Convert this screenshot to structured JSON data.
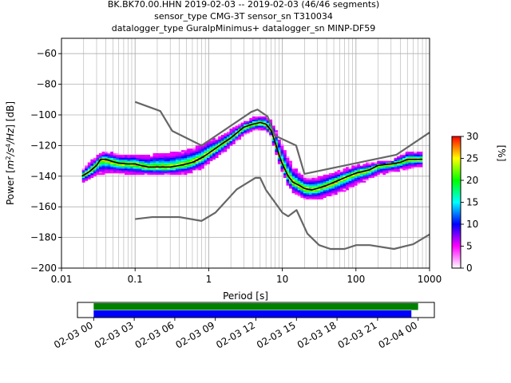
{
  "title_lines": [
    "BK.BK70.00.HHN   2019-02-03 -- 2019-02-03  (46/46 segments)",
    "sensor_type CMG-3T sensor_sn T310034",
    "datalogger_type GuralpMinimus+ datalogger_sn MINP-DF59"
  ],
  "chart_data": [
    {
      "type": "heatmap",
      "xlabel": "Period [s]",
      "ylabel_parts": [
        "Power [",
        "m",
        "2",
        "/s",
        "4",
        "/Hz",
        "] [dB]"
      ],
      "x_scale": "log",
      "xlim": [
        0.01,
        1000
      ],
      "ylim": [
        -200,
        -50
      ],
      "x_ticks": [
        {
          "value": 0.01,
          "label": "0.01"
        },
        {
          "value": 0.1,
          "label": "0.1"
        },
        {
          "value": 1,
          "label": "1"
        },
        {
          "value": 10,
          "label": "10"
        },
        {
          "value": 100,
          "label": "100"
        },
        {
          "value": 1000,
          "label": "1000"
        }
      ],
      "y_ticks": [
        -60,
        -80,
        -100,
        -120,
        -140,
        -160,
        -180,
        -200
      ],
      "grid": true,
      "colormap": [
        "#ffffff",
        "#ff00ff",
        "#0000ff",
        "#00ffff",
        "#00ff00",
        "#ffff00",
        "#ff0000"
      ],
      "colorbar": {
        "label": "[%]",
        "ticks": [
          0,
          5,
          10,
          15,
          20,
          25,
          30
        ],
        "range": [
          0,
          30
        ]
      },
      "noise_models": [
        {
          "name": "NHNM",
          "color": "#666666",
          "points": [
            [
              0.1,
              -91.5
            ],
            [
              0.22,
              -97.5
            ],
            [
              0.32,
              -110.5
            ],
            [
              0.8,
              -120
            ],
            [
              3.8,
              -98
            ],
            [
              4.6,
              -96.5
            ],
            [
              6.3,
              -101
            ],
            [
              7.9,
              -113.5
            ],
            [
              15.4,
              -120
            ],
            [
              20,
              -138.5
            ],
            [
              354.8,
              -126
            ],
            [
              1000,
              -111.5
            ]
          ]
        },
        {
          "name": "NLNM",
          "color": "#666666",
          "points": [
            [
              0.1,
              -168
            ],
            [
              0.17,
              -166.7
            ],
            [
              0.4,
              -166.7
            ],
            [
              0.8,
              -169.2
            ],
            [
              1.24,
              -163.7
            ],
            [
              2.4,
              -148.6
            ],
            [
              4.3,
              -141.1
            ],
            [
              5,
              -141.1
            ],
            [
              6,
              -149
            ],
            [
              10,
              -163.8
            ],
            [
              12,
              -166.2
            ],
            [
              15.6,
              -162.1
            ],
            [
              21.9,
              -177.5
            ],
            [
              31.6,
              -185
            ],
            [
              45,
              -187.5
            ],
            [
              70,
              -187.5
            ],
            [
              101,
              -185
            ],
            [
              154,
              -185
            ],
            [
              328,
              -187.5
            ],
            [
              600,
              -184.4
            ],
            [
              1000,
              -178
            ]
          ]
        }
      ],
      "mode_curve": {
        "color": "#000000",
        "points": [
          [
            0.019,
            -140
          ],
          [
            0.024,
            -137
          ],
          [
            0.03,
            -133
          ],
          [
            0.034,
            -129
          ],
          [
            0.04,
            -129
          ],
          [
            0.05,
            -130.5
          ],
          [
            0.06,
            -131.5
          ],
          [
            0.08,
            -132
          ],
          [
            0.1,
            -132
          ],
          [
            0.12,
            -133
          ],
          [
            0.15,
            -134
          ],
          [
            0.2,
            -134
          ],
          [
            0.3,
            -134
          ],
          [
            0.4,
            -133
          ],
          [
            0.5,
            -132
          ],
          [
            0.6,
            -131
          ],
          [
            0.8,
            -128
          ],
          [
            1,
            -125
          ],
          [
            1.5,
            -119
          ],
          [
            2,
            -115
          ],
          [
            3,
            -108
          ],
          [
            4,
            -106
          ],
          [
            5,
            -105
          ],
          [
            6,
            -106
          ],
          [
            7,
            -110
          ],
          [
            8,
            -118
          ],
          [
            9,
            -126
          ],
          [
            10,
            -132
          ],
          [
            12,
            -140
          ],
          [
            14,
            -144
          ],
          [
            17,
            -146
          ],
          [
            20,
            -148
          ],
          [
            25,
            -149
          ],
          [
            30,
            -148
          ],
          [
            40,
            -146
          ],
          [
            50,
            -144
          ],
          [
            70,
            -141
          ],
          [
            100,
            -138
          ],
          [
            150,
            -136
          ],
          [
            200,
            -133
          ],
          [
            300,
            -132
          ],
          [
            400,
            -131
          ],
          [
            500,
            -129
          ],
          [
            800,
            -129
          ]
        ]
      },
      "density": {
        "x_range": [
          0.019,
          800
        ],
        "upper_envelope": [
          [
            0.019,
            -136
          ],
          [
            0.03,
            -127
          ],
          [
            0.04,
            -124
          ],
          [
            0.06,
            -126
          ],
          [
            0.1,
            -126
          ],
          [
            0.15,
            -127
          ],
          [
            0.2,
            -125
          ],
          [
            0.3,
            -125
          ],
          [
            0.5,
            -123
          ],
          [
            0.8,
            -120
          ],
          [
            1,
            -117
          ],
          [
            1.5,
            -114
          ],
          [
            2,
            -110
          ],
          [
            3,
            -105
          ],
          [
            4,
            -102
          ],
          [
            5,
            -101
          ],
          [
            6,
            -101
          ],
          [
            7,
            -104
          ],
          [
            8,
            -109
          ],
          [
            9,
            -115
          ],
          [
            10,
            -120
          ],
          [
            12,
            -128
          ],
          [
            14,
            -134
          ],
          [
            20,
            -141
          ],
          [
            30,
            -141
          ],
          [
            50,
            -138
          ],
          [
            100,
            -133
          ],
          [
            200,
            -131
          ],
          [
            300,
            -130
          ],
          [
            500,
            -124
          ],
          [
            800,
            -124
          ]
        ],
        "lower_envelope": [
          [
            0.019,
            -144
          ],
          [
            0.03,
            -139
          ],
          [
            0.04,
            -138
          ],
          [
            0.06,
            -138
          ],
          [
            0.1,
            -139
          ],
          [
            0.15,
            -139
          ],
          [
            0.2,
            -139
          ],
          [
            0.3,
            -139
          ],
          [
            0.5,
            -138
          ],
          [
            0.8,
            -135
          ],
          [
            1,
            -131
          ],
          [
            1.5,
            -125
          ],
          [
            2,
            -120
          ],
          [
            3,
            -113
          ],
          [
            4,
            -110
          ],
          [
            5,
            -109
          ],
          [
            6,
            -110
          ],
          [
            7,
            -114
          ],
          [
            8,
            -123
          ],
          [
            9,
            -131
          ],
          [
            10,
            -137
          ],
          [
            12,
            -146
          ],
          [
            14,
            -150
          ],
          [
            17,
            -153
          ],
          [
            20,
            -155
          ],
          [
            25,
            -155
          ],
          [
            30,
            -155
          ],
          [
            40,
            -153
          ],
          [
            50,
            -152
          ],
          [
            70,
            -149
          ],
          [
            100,
            -145
          ],
          [
            150,
            -142
          ],
          [
            200,
            -139
          ],
          [
            300,
            -137
          ],
          [
            500,
            -135
          ],
          [
            800,
            -133
          ]
        ]
      }
    },
    {
      "type": "bar",
      "x_ticks": [
        "02-03 00",
        "02-03 03",
        "02-03 06",
        "02-03 09",
        "02-03 12",
        "02-03 15",
        "02-03 18",
        "02-03 21",
        "02-04 00"
      ],
      "x_range_hours": [
        -1.2,
        25.2
      ],
      "bars": [
        {
          "color": "#008000",
          "start_hour": 0,
          "end_hour": 24
        },
        {
          "color": "#0000ff",
          "start_hour": 0,
          "end_hour": 23.5
        }
      ]
    }
  ]
}
